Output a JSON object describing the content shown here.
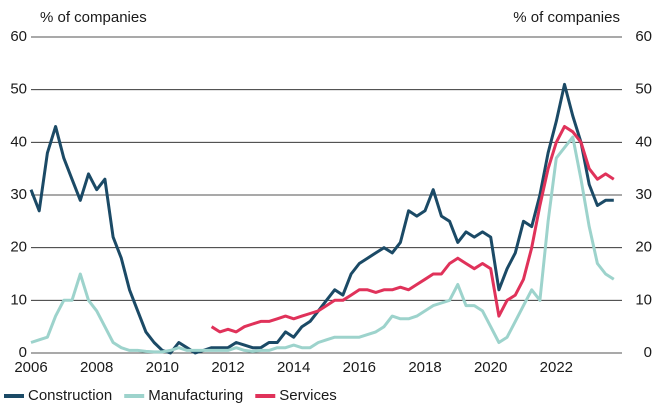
{
  "chart_data": {
    "type": "line",
    "ylabel": "% of companies",
    "y2label": "% of companies",
    "x": [
      2006,
      2006.25,
      2006.5,
      2006.75,
      2007,
      2007.25,
      2007.5,
      2007.75,
      2008,
      2008.25,
      2008.5,
      2008.75,
      2009,
      2009.25,
      2009.5,
      2009.75,
      2010,
      2010.25,
      2010.5,
      2010.75,
      2011,
      2011.25,
      2011.5,
      2011.75,
      2012,
      2012.25,
      2012.5,
      2012.75,
      2013,
      2013.25,
      2013.5,
      2013.75,
      2014,
      2014.25,
      2014.5,
      2014.75,
      2015,
      2015.25,
      2015.5,
      2015.75,
      2016,
      2016.25,
      2016.5,
      2016.75,
      2017,
      2017.25,
      2017.5,
      2017.75,
      2018,
      2018.25,
      2018.5,
      2018.75,
      2019,
      2019.25,
      2019.5,
      2019.75,
      2020,
      2020.25,
      2020.5,
      2020.75,
      2021,
      2021.25,
      2021.5,
      2021.75,
      2022,
      2022.25,
      2022.5,
      2022.75,
      2023,
      2023.25,
      2023.5,
      2023.75
    ],
    "series": [
      {
        "name": "Construction",
        "color": "#1b4a66",
        "values": [
          31,
          27,
          38,
          43,
          37,
          33,
          29,
          34,
          31,
          33,
          22,
          18,
          12,
          8,
          4,
          2,
          0.5,
          0,
          2,
          1,
          0,
          0.5,
          1,
          1,
          1,
          2,
          1.5,
          1,
          1,
          2,
          2,
          4,
          3,
          5,
          6,
          8,
          10,
          12,
          11,
          15,
          17,
          18,
          19,
          20,
          19,
          21,
          27,
          26,
          27,
          31,
          26,
          25,
          21,
          23,
          22,
          23,
          22,
          12,
          16,
          19,
          25,
          24,
          30,
          38,
          44,
          51,
          45,
          40,
          32,
          28,
          29,
          29
        ]
      },
      {
        "name": "Manufacturing",
        "color": "#9dd3cc",
        "values": [
          2,
          2.5,
          3,
          7,
          10,
          10,
          15,
          10,
          8,
          5,
          2,
          1,
          0.5,
          0.5,
          0.3,
          0.2,
          0.2,
          0.5,
          1,
          0.5,
          0.5,
          0.5,
          0.5,
          0.5,
          0.5,
          1,
          0.5,
          0.3,
          0.5,
          0.5,
          1,
          1,
          1.5,
          1,
          1,
          2,
          2.5,
          3,
          3,
          3,
          3,
          3.5,
          4,
          5,
          7,
          6.5,
          6.5,
          7,
          8,
          9,
          9.5,
          10,
          13,
          9,
          9,
          8,
          5,
          2,
          3,
          6,
          9,
          12,
          10,
          25,
          37,
          39,
          41,
          33,
          24,
          17,
          15,
          14
        ]
      },
      {
        "name": "Services",
        "color": "#e0325a",
        "values": [
          null,
          null,
          null,
          null,
          null,
          null,
          null,
          null,
          null,
          null,
          null,
          null,
          null,
          null,
          null,
          null,
          null,
          null,
          null,
          null,
          null,
          null,
          5,
          4,
          4.5,
          4,
          5,
          5.5,
          6,
          6,
          6.5,
          7,
          6.5,
          7,
          7.5,
          8,
          9,
          10,
          10,
          11,
          12,
          12,
          11.5,
          12,
          12,
          12.5,
          12,
          13,
          14,
          15,
          15,
          17,
          18,
          17,
          16,
          17,
          16,
          7,
          10,
          11,
          14,
          20,
          28,
          35,
          40,
          43,
          42,
          40,
          35,
          33,
          34,
          33
        ]
      }
    ],
    "xlim": [
      2006,
      2024
    ],
    "xticks": [
      2006,
      2008,
      2010,
      2012,
      2014,
      2016,
      2018,
      2020,
      2022
    ],
    "ylim": [
      0,
      60
    ],
    "yticks": [
      0,
      10,
      20,
      30,
      40,
      50,
      60
    ],
    "y2lim": [
      0,
      60
    ],
    "y2ticks": [
      0,
      10,
      20,
      30,
      40,
      50,
      60
    ],
    "grid": true,
    "legend": "bottom"
  }
}
